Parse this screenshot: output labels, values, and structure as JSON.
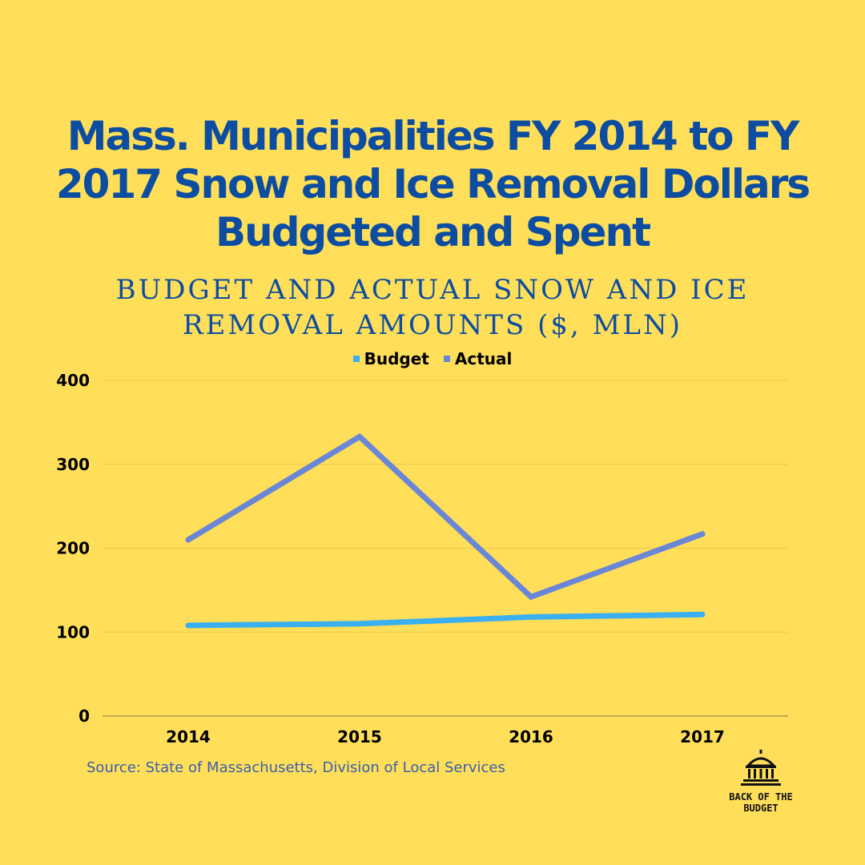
{
  "header": {
    "title": "Mass. Municipalities FY 2014 to FY 2017 Snow and Ice Removal Dollars Budgeted and Spent",
    "subtitle": "BUDGET AND ACTUAL SNOW AND ICE REMOVAL AMOUNTS ($, MLN)"
  },
  "colors": {
    "background": "#FFDE59",
    "title": "#0C4DA2",
    "budget": "#3BB0F0",
    "actual": "#6A86D6"
  },
  "chart_data": {
    "type": "line",
    "title": "Mass. Municipalities FY 2014 to FY 2017 Snow and Ice Removal Dollars Budgeted and Spent",
    "subtitle": "BUDGET AND ACTUAL SNOW AND ICE REMOVAL AMOUNTS ($, MLN)",
    "categories": [
      "2014",
      "2015",
      "2016",
      "2017"
    ],
    "series": [
      {
        "name": "Budget",
        "values": [
          108,
          110,
          118,
          121
        ]
      },
      {
        "name": "Actual",
        "values": [
          210,
          333,
          142,
          217
        ]
      }
    ],
    "ylim": [
      0,
      400
    ],
    "yticks": [
      "0",
      "100",
      "200",
      "300",
      "400"
    ],
    "grid": true,
    "legend_position": "top-center"
  },
  "footer": {
    "source": "Source: State of Massachusetts, Division of Local Services",
    "logo_text_line1": "BACK OF THE",
    "logo_text_line2": "BUDGET"
  }
}
